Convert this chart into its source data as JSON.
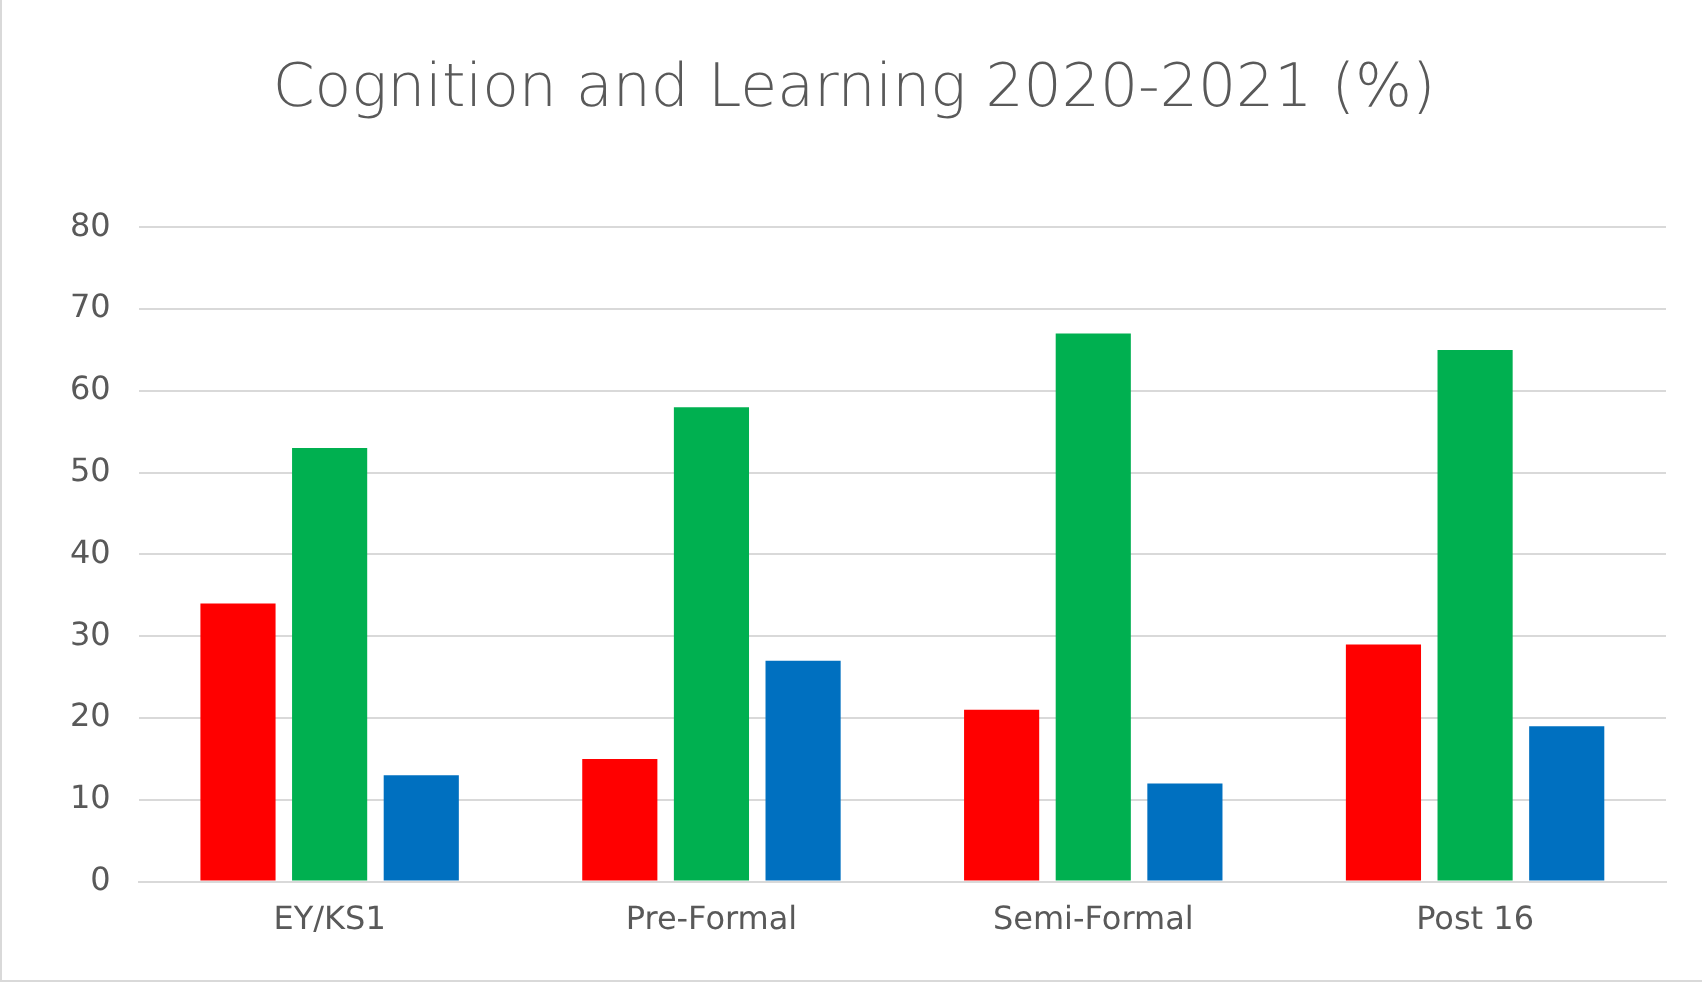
{
  "chart_data": {
    "type": "bar",
    "title": "Cognition and Learning 2020-2021 (%)",
    "categories": [
      "EY/KS1",
      "Pre-Formal",
      "Semi-Formal",
      "Post 16"
    ],
    "series": [
      {
        "color": "#ff0000",
        "values": [
          34,
          15,
          21,
          29
        ]
      },
      {
        "color": "#00b050",
        "values": [
          53,
          58,
          67,
          65
        ]
      },
      {
        "color": "#0070c0",
        "values": [
          13,
          27,
          12,
          19
        ]
      }
    ],
    "ylim": [
      0,
      80
    ],
    "yticks": [
      0,
      10,
      20,
      30,
      40,
      50,
      60,
      70,
      80
    ],
    "grid": "y",
    "legend": false
  }
}
